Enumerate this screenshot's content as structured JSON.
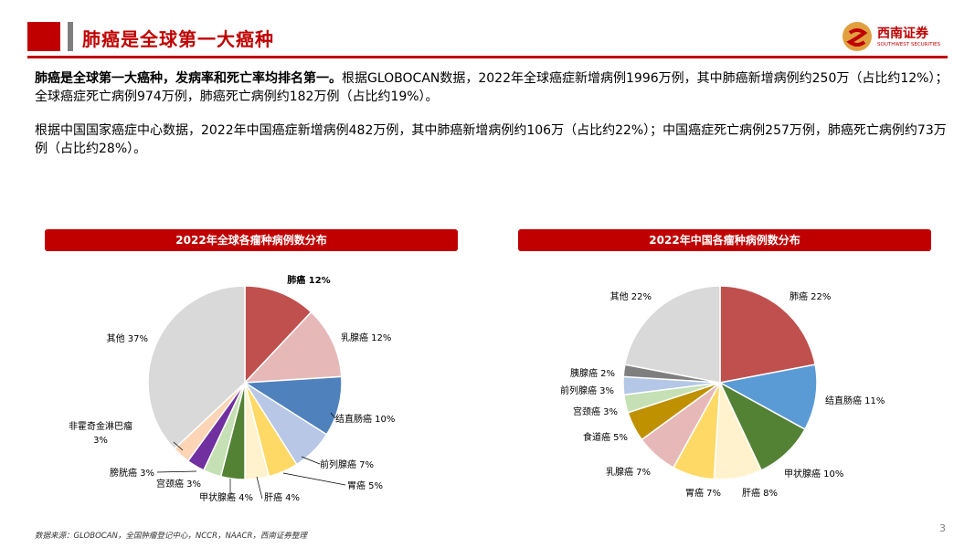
{
  "header": {
    "title": "肺癌是全球第一大癌种",
    "logo_name": "西南证券",
    "logo_sub": "SOUTHWEST SECURITIES"
  },
  "paragraphs": {
    "p1_bold": "肺癌是全球第一大癌种，发病率和死亡率均排名第一。",
    "p1_rest": "根据GLOBOCAN数据，2022年全球癌症新增病例1996万例，其中肺癌新增病例约250万（占比约12%）；全球癌症死亡病例974万例，肺癌死亡病例约182万例（占比约19%）。",
    "p2": "根据中国国家癌症中心数据，2022年中国癌症新增病例482万例，其中肺癌新增病例约106万（占比约22%）；中国癌症死亡病例257万例，肺癌死亡病例约73万例（占比约28%）。"
  },
  "footer": "数据来源：GLOBOCAN，全国肿瘤登记中心，NCCR，NAACR，西南证券整理",
  "page_number": "3",
  "chart_data": [
    {
      "type": "pie",
      "title": "2022年全球各瘤种病例数分布",
      "slices": [
        {
          "label": "肺癌",
          "value": 12,
          "display": "12%",
          "color": "#c0504d"
        },
        {
          "label": "乳腺癌",
          "value": 12,
          "display": "12%",
          "color": "#e6b9b8"
        },
        {
          "label": "结直肠癌",
          "value": 10,
          "display": "10%",
          "color": "#4f81bd"
        },
        {
          "label": "前列腺癌",
          "value": 7,
          "display": "7%",
          "color": "#b8c7e6"
        },
        {
          "label": "胃癌",
          "value": 5,
          "display": "5%",
          "color": "#ffd966"
        },
        {
          "label": "肝癌",
          "value": 4,
          "display": "4%",
          "color": "#fff2cc"
        },
        {
          "label": "甲状腺癌",
          "value": 4,
          "display": "4%",
          "color": "#548235"
        },
        {
          "label": "宫颈癌",
          "value": 3,
          "display": "3%",
          "color": "#c5e0b4"
        },
        {
          "label": "膀胱癌",
          "value": 3,
          "display": "3%",
          "color": "#7030a0"
        },
        {
          "label": "非霍奇金淋巴瘤",
          "value": 3,
          "display": "3%",
          "color": "#fbd5b5"
        },
        {
          "label": "其他",
          "value": 37,
          "display": "37%",
          "color": "#d9d9d9"
        }
      ]
    },
    {
      "type": "pie",
      "title": "2022年中国各瘤种病例数分布",
      "slices": [
        {
          "label": "肺癌",
          "value": 22,
          "display": "22%",
          "color": "#c0504d"
        },
        {
          "label": "结直肠癌",
          "value": 11,
          "display": "11%",
          "color": "#5b9bd5"
        },
        {
          "label": "甲状腺癌",
          "value": 10,
          "display": "10%",
          "color": "#548235"
        },
        {
          "label": "肝癌",
          "value": 8,
          "display": "8%",
          "color": "#fff2cc"
        },
        {
          "label": "胃癌",
          "value": 7,
          "display": "7%",
          "color": "#ffd966"
        },
        {
          "label": "乳腺癌",
          "value": 7,
          "display": "7%",
          "color": "#e6b9b8"
        },
        {
          "label": "食道癌",
          "value": 5,
          "display": "5%",
          "color": "#bf9000"
        },
        {
          "label": "宫颈癌",
          "value": 3,
          "display": "3%",
          "color": "#c5e0b4"
        },
        {
          "label": "前列腺癌",
          "value": 3,
          "display": "3%",
          "color": "#b4c7e7"
        },
        {
          "label": "胰腺癌",
          "value": 2,
          "display": "2%",
          "color": "#7f7f7f"
        },
        {
          "label": "其他",
          "value": 22,
          "display": "22%",
          "color": "#d9d9d9"
        }
      ]
    }
  ]
}
